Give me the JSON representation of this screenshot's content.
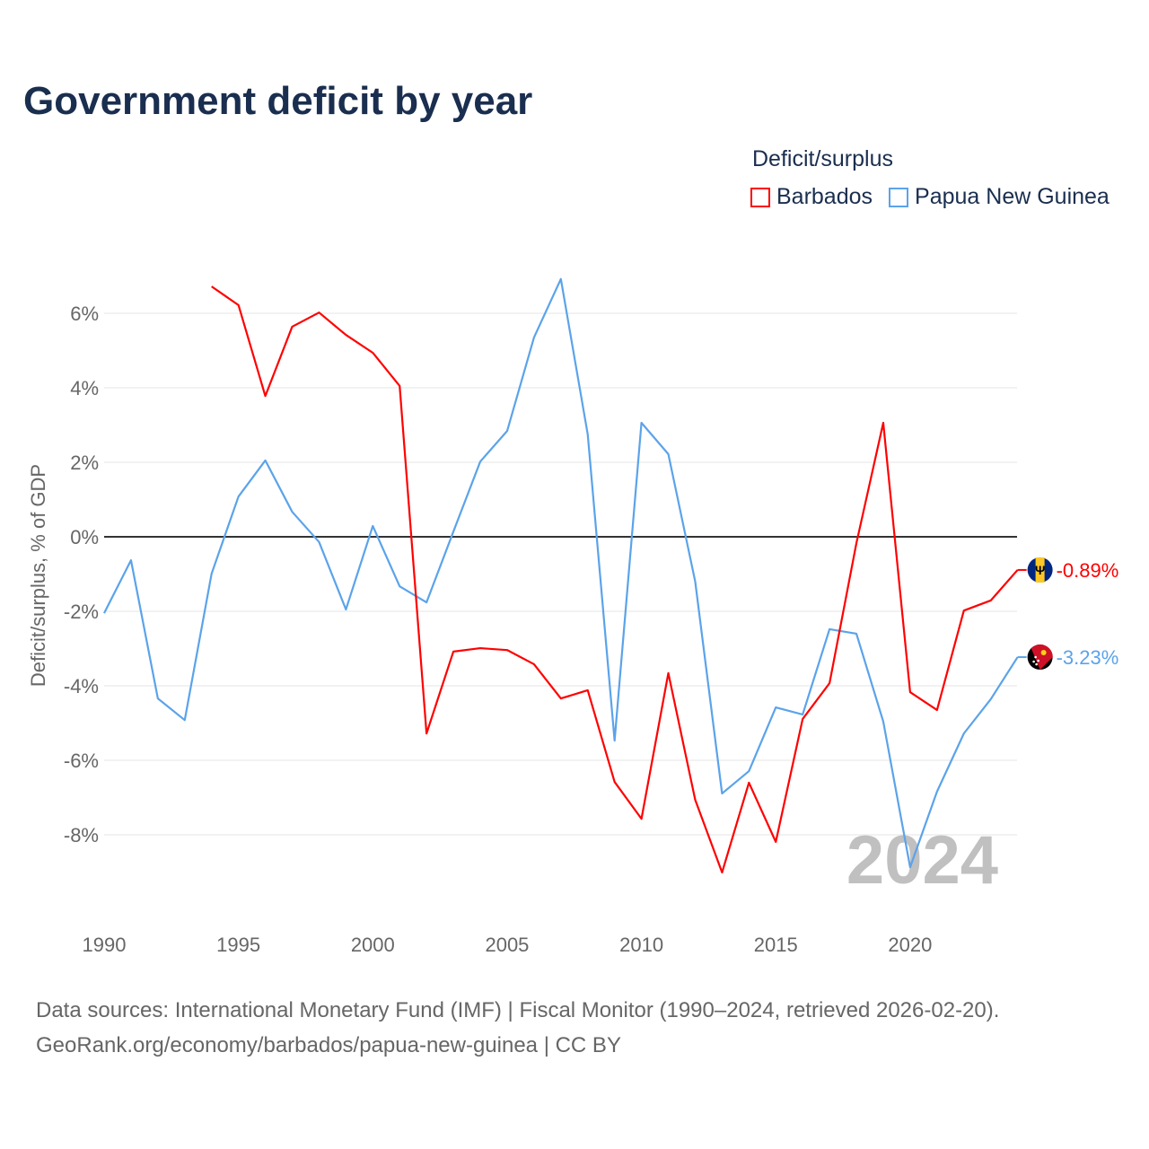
{
  "title": "Government deficit by year",
  "legend": {
    "title": "Deficit/surplus",
    "items": [
      {
        "label": "Barbados",
        "color": "#ff0000"
      },
      {
        "label": "Papua New Guinea",
        "color": "#5ba3ea"
      }
    ]
  },
  "source": {
    "line1": "Data sources: International Monetary Fund (IMF) | Fiscal Monitor (1990–2024, retrieved 2026-02-20).",
    "line2": "GeoRank.org/economy/barbados/papua-new-guinea | CC BY"
  },
  "chart_data": {
    "type": "line",
    "title": "Government deficit by year",
    "xlabel": "",
    "ylabel": "Deficit/surplus, % of GDP",
    "xlim": [
      1990,
      2024
    ],
    "ylim": [
      -10,
      7
    ],
    "x_ticks": [
      1990,
      1995,
      2000,
      2005,
      2010,
      2015,
      2020
    ],
    "x_tick_labels": [
      "1990",
      "1995",
      "2000",
      "2005",
      "2010",
      "2015",
      "2020"
    ],
    "y_ticks": [
      6,
      4,
      2,
      0,
      -2,
      -4,
      -6,
      -8
    ],
    "y_tick_labels": [
      "6%",
      "4%",
      "2%",
      "0%",
      "-2%",
      "-4%",
      "-6%",
      "-8%"
    ],
    "year_watermark": "2024",
    "grid": true,
    "legend_position": "top-right",
    "series": [
      {
        "name": "Barbados",
        "color": "#ff0000",
        "end_label": "-0.89%",
        "x": [
          1994,
          1995,
          1996,
          1997,
          1998,
          1999,
          2000,
          2001,
          2002,
          2003,
          2004,
          2005,
          2006,
          2007,
          2008,
          2009,
          2010,
          2011,
          2012,
          2013,
          2014,
          2015,
          2016,
          2017,
          2018,
          2019,
          2020,
          2021,
          2022,
          2023,
          2024
        ],
        "values": [
          6.72,
          6.22,
          3.78,
          5.64,
          6.02,
          5.42,
          4.94,
          4.05,
          -5.28,
          -3.08,
          -2.99,
          -3.04,
          -3.42,
          -4.34,
          -4.12,
          -6.58,
          -7.57,
          -3.66,
          -7.06,
          -9.01,
          -6.6,
          -8.19,
          -4.89,
          -3.93,
          -0.17,
          3.06,
          -4.17,
          -4.65,
          -1.98,
          -1.71,
          -0.89
        ]
      },
      {
        "name": "Papua New Guinea",
        "color": "#5ba3ea",
        "end_label": "-3.23%",
        "x": [
          1990,
          1991,
          1992,
          1993,
          1994,
          1995,
          1996,
          1997,
          1998,
          1999,
          2000,
          2001,
          2002,
          2003,
          2004,
          2005,
          2006,
          2007,
          2008,
          2009,
          2010,
          2011,
          2012,
          2013,
          2014,
          2015,
          2016,
          2017,
          2018,
          2019,
          2020,
          2021,
          2022,
          2023,
          2024
        ],
        "values": [
          -2.05,
          -0.63,
          -4.34,
          -4.92,
          -0.99,
          1.08,
          2.05,
          0.67,
          -0.14,
          -1.95,
          0.29,
          -1.33,
          -1.76,
          0.14,
          2.02,
          2.84,
          5.35,
          6.92,
          2.75,
          -5.47,
          3.06,
          2.22,
          -1.2,
          -6.89,
          -6.29,
          -4.58,
          -4.77,
          -2.48,
          -2.6,
          -4.96,
          -8.87,
          -6.84,
          -5.28,
          -4.36,
          -3.23
        ]
      }
    ]
  }
}
